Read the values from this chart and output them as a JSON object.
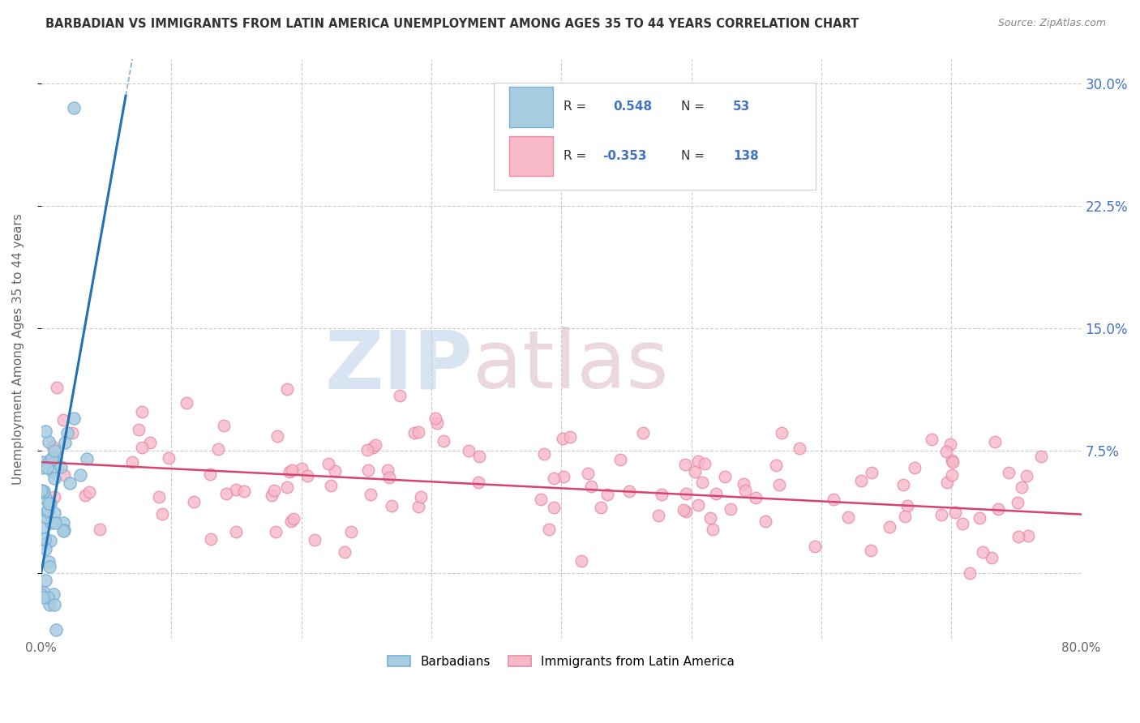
{
  "title": "BARBADIAN VS IMMIGRANTS FROM LATIN AMERICA UNEMPLOYMENT AMONG AGES 35 TO 44 YEARS CORRELATION CHART",
  "source": "Source: ZipAtlas.com",
  "ylabel": "Unemployment Among Ages 35 to 44 years",
  "xlim": [
    0.0,
    0.8
  ],
  "ylim": [
    -0.04,
    0.315
  ],
  "xticks": [
    0.0,
    0.1,
    0.2,
    0.3,
    0.4,
    0.5,
    0.6,
    0.7,
    0.8
  ],
  "yticks_right": [
    0.0,
    0.075,
    0.15,
    0.225,
    0.3
  ],
  "ytick_right_labels": [
    "",
    "7.5%",
    "15.0%",
    "22.5%",
    "30.0%"
  ],
  "blue_scatter_color": "#a8cce0",
  "blue_edge_color": "#7ab0d4",
  "blue_line_color": "#2171b5",
  "blue_text_color": "#4472C4",
  "pink_scatter_color": "#f7b8c8",
  "pink_edge_color": "#e88aaa",
  "pink_line_color": "#d6436e",
  "pink_text_color": "#4472C4",
  "watermark_zip_color": "#b8cfe8",
  "watermark_atlas_color": "#d4a8b8",
  "blue_slope": 4.5,
  "blue_intercept": 0.0,
  "pink_slope": -0.04,
  "pink_intercept": 0.068,
  "background_color": "#ffffff",
  "grid_color": "#cccccc",
  "title_color": "#333333",
  "source_color": "#888888",
  "axis_label_color": "#666666"
}
